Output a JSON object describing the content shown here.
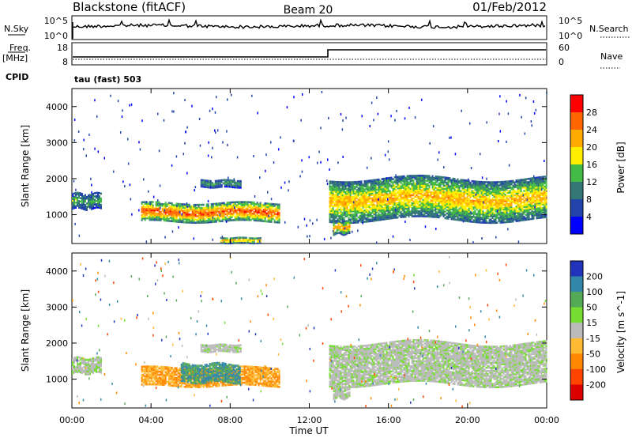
{
  "header": {
    "station": "Blackstone (fitACF)",
    "beam": "Beam 20",
    "date": "01/Feb/2012"
  },
  "panels_top": {
    "nsky_label": "N.Sky",
    "nsky_top": "10^5",
    "nsky_bottom": "10^0",
    "nsearch_label": "N.Search",
    "nsearch_top": "10^5",
    "nsearch_bottom": "10^0",
    "freq_label": "Freq.",
    "freq_unit": "[MHz]",
    "freq_top": "18",
    "freq_bottom": "8",
    "nave_label": "Nave",
    "nave_top": "60",
    "nave_bottom": "0",
    "cpid_label": "CPID",
    "cpid_value": "tau (fast) 503"
  },
  "chart_data": [
    {
      "type": "heatmap",
      "name": "power",
      "ylabel": "Slant Range [km]",
      "colorbar_label": "Power [dB]",
      "colorbar_ticks": [
        "28",
        "24",
        "20",
        "16",
        "12",
        "8",
        "4"
      ],
      "colorbar_colors": [
        "#ff0000",
        "#ff6600",
        "#ffaa00",
        "#ffee00",
        "#44bb44",
        "#337777",
        "#2244aa",
        "#0000ff"
      ],
      "ylim": [
        200,
        4500
      ],
      "yticks": [
        "4000",
        "3000",
        "2000",
        "1000"
      ],
      "echo_bands": [
        {
          "t_start": 0.0,
          "t_end": 1.5,
          "r_start": 1150,
          "r_end": 1600,
          "peak_db": 14
        },
        {
          "t_start": 3.5,
          "t_end": 10.5,
          "r_start": 800,
          "r_end": 1300,
          "peak_db": 28
        },
        {
          "t_start": 6.5,
          "t_end": 8.5,
          "r_start": 1750,
          "r_end": 1950,
          "peak_db": 14
        },
        {
          "t_start": 7.5,
          "t_end": 9.5,
          "r_start": 200,
          "r_end": 350,
          "peak_db": 24
        },
        {
          "t_start": 13.0,
          "t_end": 24.0,
          "r_start": 850,
          "r_end": 2000,
          "peak_db": 22
        },
        {
          "t_start": 13.2,
          "t_end": 14.0,
          "r_start": 450,
          "r_end": 800,
          "peak_db": 24
        }
      ]
    },
    {
      "type": "heatmap",
      "name": "velocity",
      "xlabel": "Time UT",
      "ylabel": "Slant Range [km]",
      "colorbar_label": "Velocity [m s^-1]",
      "colorbar_ticks": [
        "200",
        "100",
        "50",
        "15",
        "-15",
        "-50",
        "-100",
        "-200"
      ],
      "colorbar_colors": [
        "#2233bb",
        "#3388aa",
        "#55aa55",
        "#77dd33",
        "#bbbbbb",
        "#ffbb33",
        "#ff8800",
        "#ff4400",
        "#dd0000"
      ],
      "ylim": [
        200,
        4500
      ],
      "yticks": [
        "4000",
        "3000",
        "2000",
        "1000"
      ],
      "xticks": [
        "00:00",
        "04:00",
        "08:00",
        "12:00",
        "16:00",
        "20:00",
        "00:00"
      ],
      "xlim": [
        0,
        24
      ],
      "echo_bands": [
        {
          "t_start": 0.0,
          "t_end": 1.5,
          "r_start": 1150,
          "r_end": 1600,
          "velocity": 0
        },
        {
          "t_start": 3.5,
          "t_end": 10.5,
          "r_start": 800,
          "r_end": 1300,
          "velocity": -50
        },
        {
          "t_start": 5.5,
          "t_end": 8.5,
          "r_start": 900,
          "r_end": 1400,
          "velocity": 50
        },
        {
          "t_start": 6.5,
          "t_end": 8.5,
          "r_start": 1750,
          "r_end": 1950,
          "velocity": 0
        },
        {
          "t_start": 13.0,
          "t_end": 24.0,
          "r_start": 850,
          "r_end": 2000,
          "velocity": 0
        },
        {
          "t_start": 13.2,
          "t_end": 14.0,
          "r_start": 450,
          "r_end": 800,
          "velocity": 0
        }
      ]
    }
  ]
}
